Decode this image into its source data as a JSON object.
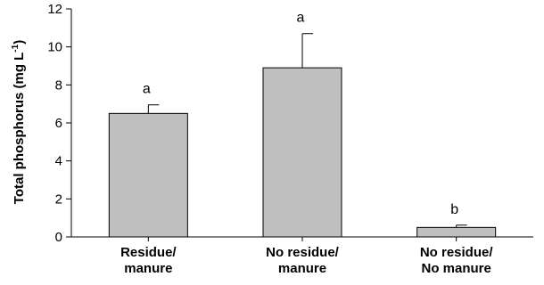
{
  "chart_data": {
    "type": "bar",
    "categories": [
      [
        "Residue/",
        "manure"
      ],
      [
        "No residue/",
        "manure"
      ],
      [
        "No residue/",
        "No manure"
      ]
    ],
    "values": [
      6.5,
      8.9,
      0.5
    ],
    "errors": [
      0.45,
      1.8,
      0.12
    ],
    "significance": [
      "a",
      "a",
      "b"
    ],
    "ylabel": {
      "main": "Total phosphorus (mg L",
      "sup": "-1",
      "end": ")"
    },
    "ylim": [
      0,
      12
    ],
    "yticks": [
      0,
      2,
      4,
      6,
      8,
      10,
      12
    ],
    "grid": false,
    "bar_color": "#c0c0c0",
    "bar_edge_color": "#000000"
  }
}
